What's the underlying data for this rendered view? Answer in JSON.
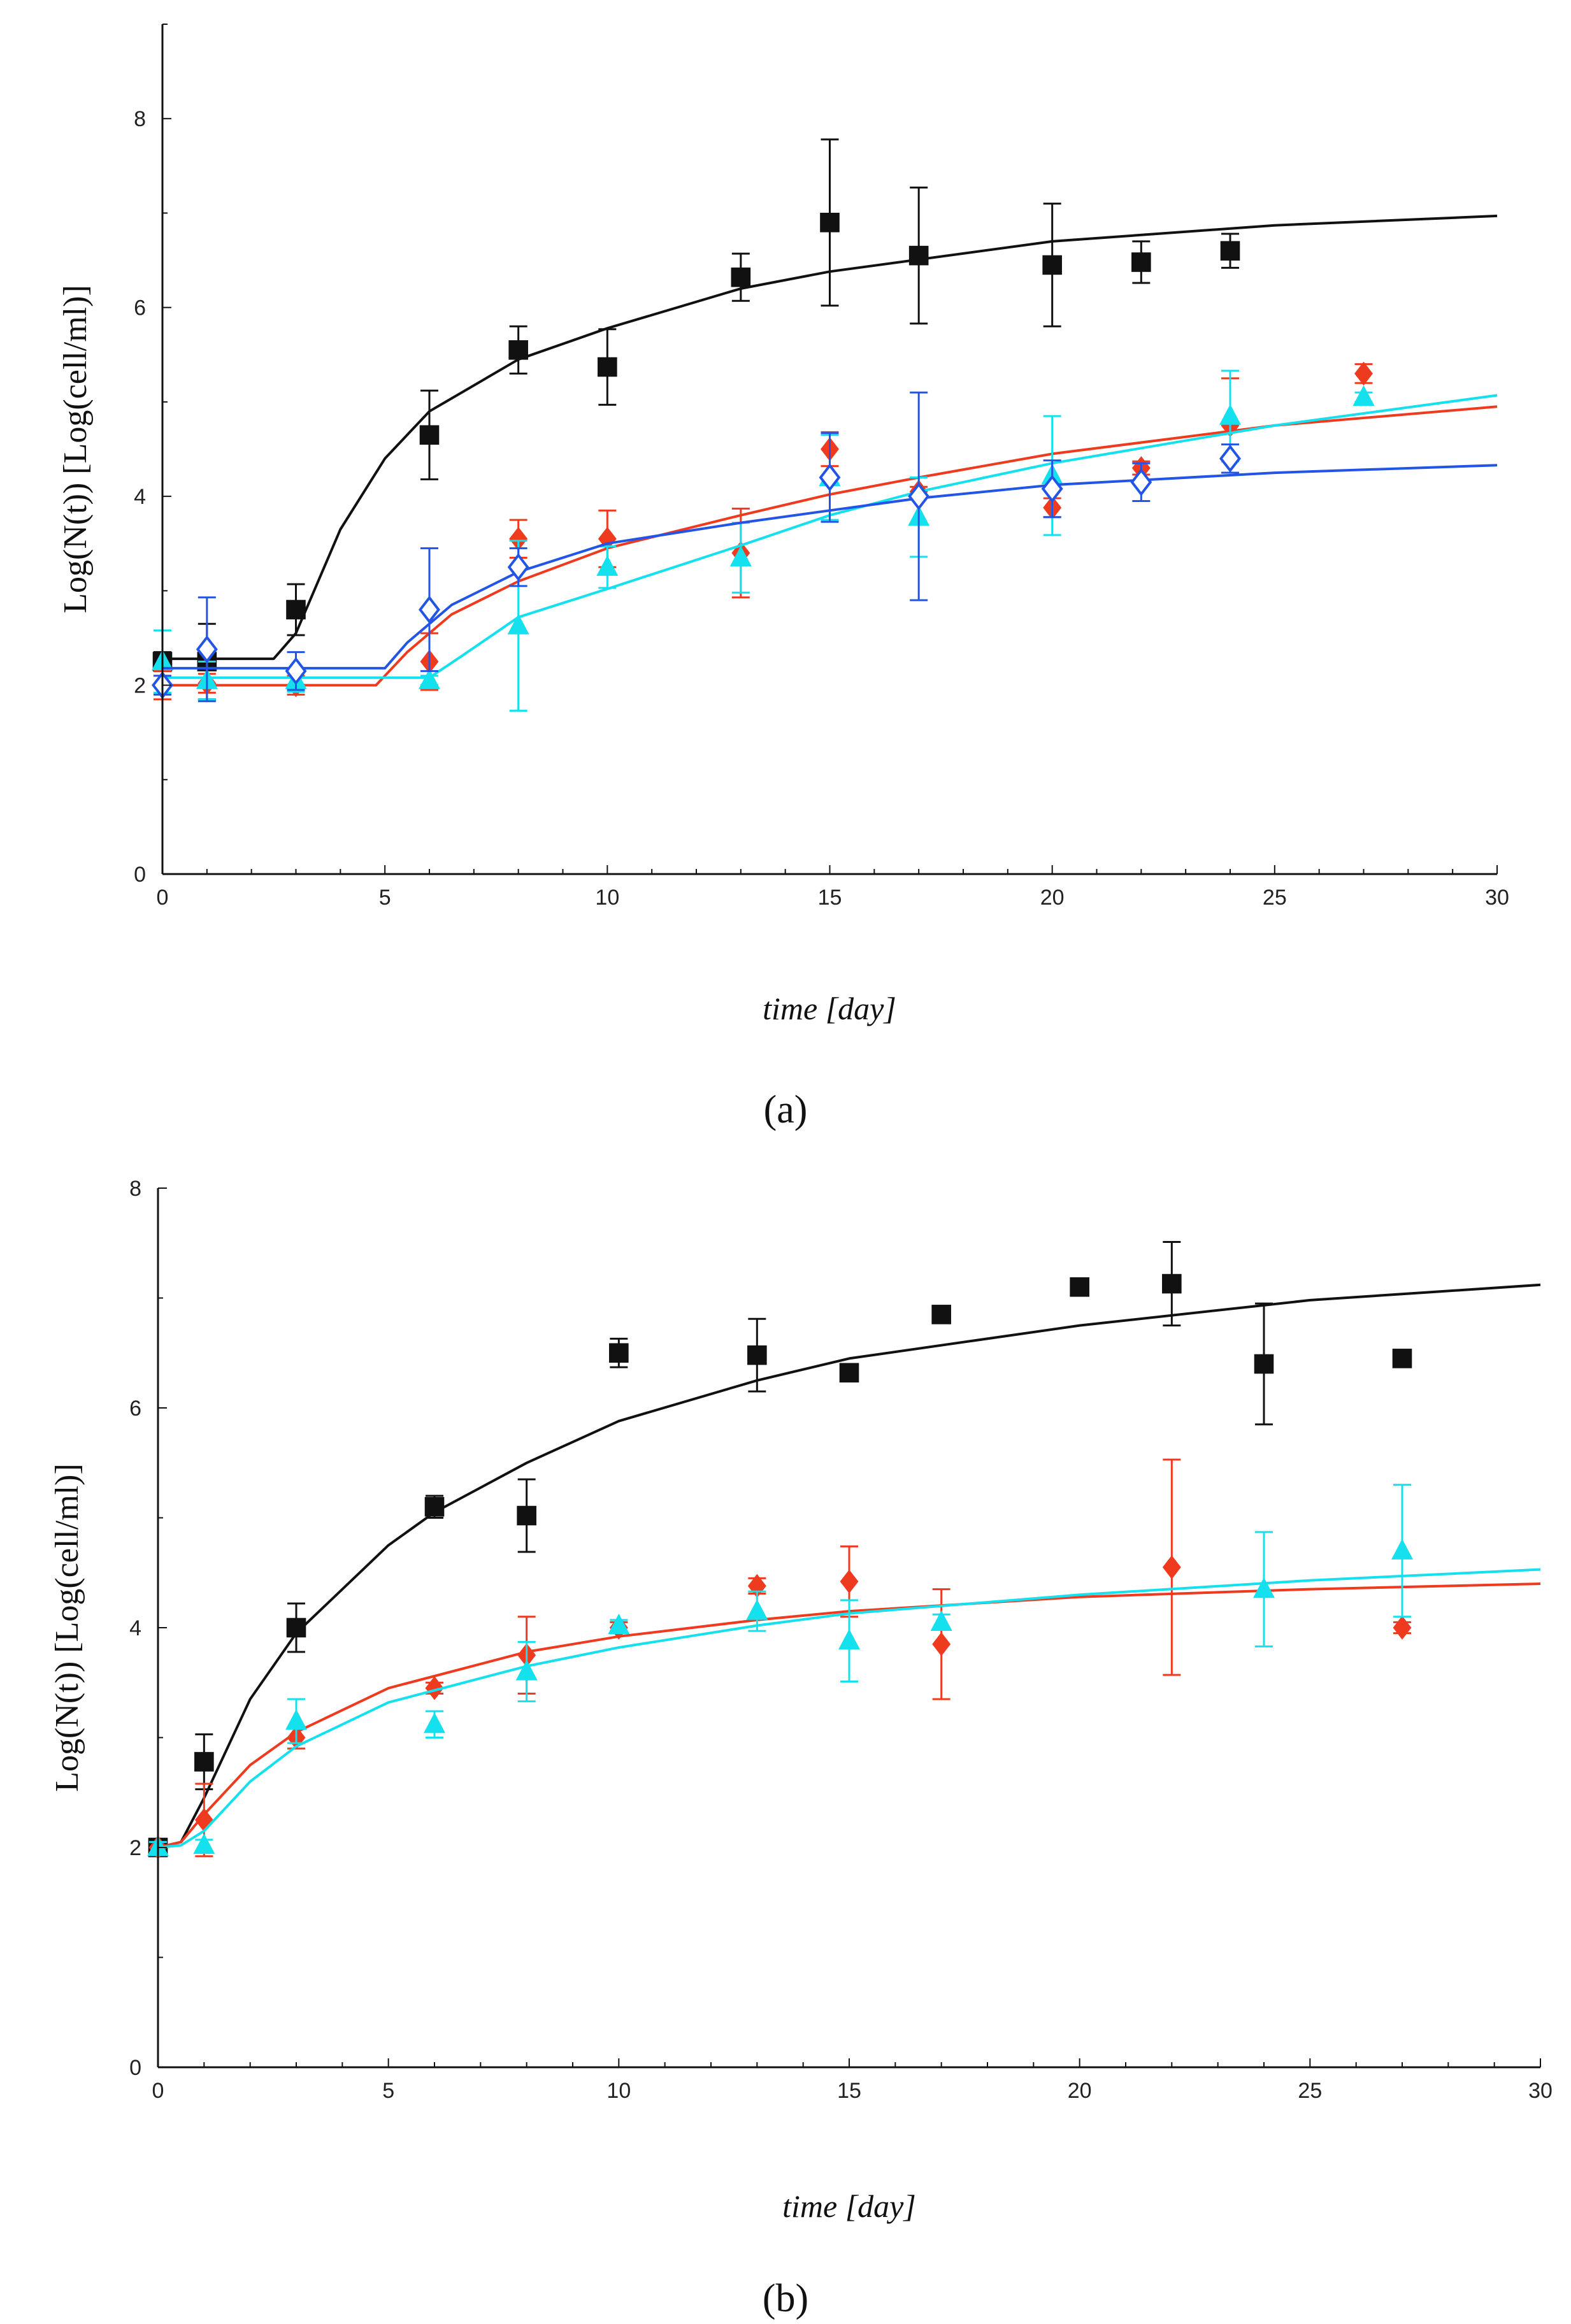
{
  "chart_data": [
    {
      "type": "scatter",
      "caption": "(a)",
      "xlabel": "time [day]",
      "ylabel": "Log(N(t)) [Log(cell/ml)]",
      "xlim": [
        0,
        30
      ],
      "ylim": [
        0,
        9
      ],
      "xticks": [
        "0",
        "5",
        "10",
        "15",
        "20",
        "25",
        "30"
      ],
      "yticks": [
        "0",
        "2",
        "4",
        "6",
        "8"
      ],
      "series": [
        {
          "name": "black",
          "color": "#111111",
          "marker": "square",
          "points": [
            {
              "x": 0,
              "y": 2.25,
              "err": 0.1
            },
            {
              "x": 1,
              "y": 2.25,
              "err": 0.4
            },
            {
              "x": 3,
              "y": 2.8,
              "err": 0.27
            },
            {
              "x": 6,
              "y": 4.65,
              "err": 0.47
            },
            {
              "x": 8,
              "y": 5.55,
              "err": 0.25
            },
            {
              "x": 10,
              "y": 5.37,
              "err": 0.4
            },
            {
              "x": 13,
              "y": 6.32,
              "err": 0.25
            },
            {
              "x": 15,
              "y": 6.9,
              "err": 0.88
            },
            {
              "x": 17,
              "y": 6.55,
              "err": 0.72
            },
            {
              "x": 20,
              "y": 6.45,
              "err": 0.65
            },
            {
              "x": 22,
              "y": 6.48,
              "err": 0.22
            },
            {
              "x": 24,
              "y": 6.6,
              "err": 0.18
            }
          ],
          "fit": [
            [
              0,
              2.28
            ],
            [
              2.5,
              2.28
            ],
            [
              3,
              2.55
            ],
            [
              3.5,
              3.1
            ],
            [
              4,
              3.65
            ],
            [
              5,
              4.4
            ],
            [
              6,
              4.9
            ],
            [
              8,
              5.45
            ],
            [
              10,
              5.78
            ],
            [
              13,
              6.2
            ],
            [
              15,
              6.38
            ],
            [
              20,
              6.7
            ],
            [
              25,
              6.87
            ],
            [
              30,
              6.97
            ]
          ]
        },
        {
          "name": "red",
          "color": "#ee3a1e",
          "marker": "diamond",
          "points": [
            {
              "x": 0,
              "y": 2.0,
              "err": 0.15
            },
            {
              "x": 1,
              "y": 2.02,
              "err": 0.1
            },
            {
              "x": 3,
              "y": 2.0,
              "err": 0.1
            },
            {
              "x": 6,
              "y": 2.25,
              "err": 0.3
            },
            {
              "x": 8,
              "y": 3.55,
              "err": 0.2
            },
            {
              "x": 10,
              "y": 3.55,
              "err": 0.3
            },
            {
              "x": 13,
              "y": 3.4,
              "err": 0.47
            },
            {
              "x": 15,
              "y": 4.5,
              "err": 0.18
            },
            {
              "x": 17,
              "y": 4.05,
              "err": 0.05
            },
            {
              "x": 20,
              "y": 3.88,
              "err": 0.1
            },
            {
              "x": 22,
              "y": 4.3,
              "err": 0.07
            },
            {
              "x": 24,
              "y": 4.75,
              "err": 0.5
            },
            {
              "x": 27,
              "y": 5.3,
              "err": 0.1
            }
          ],
          "fit": [
            [
              0,
              2.0
            ],
            [
              4.8,
              2.0
            ],
            [
              5.5,
              2.35
            ],
            [
              6.5,
              2.75
            ],
            [
              8,
              3.1
            ],
            [
              10,
              3.45
            ],
            [
              13,
              3.8
            ],
            [
              15,
              4.02
            ],
            [
              17,
              4.2
            ],
            [
              20,
              4.45
            ],
            [
              25,
              4.75
            ],
            [
              30,
              4.95
            ]
          ]
        },
        {
          "name": "cyan",
          "color": "#14e0ee",
          "marker": "triangle",
          "points": [
            {
              "x": 0,
              "y": 2.25,
              "err": 0.33
            },
            {
              "x": 1,
              "y": 2.05,
              "err": 0.2
            },
            {
              "x": 3,
              "y": 2.05,
              "err": 0.12
            },
            {
              "x": 6,
              "y": 2.05,
              "err": 0.05
            },
            {
              "x": 8,
              "y": 2.63,
              "err": 0.9
            },
            {
              "x": 10,
              "y": 3.25,
              "err": 0.22
            },
            {
              "x": 13,
              "y": 3.35,
              "err": 0.37
            },
            {
              "x": 15,
              "y": 4.2,
              "err": 0.45
            },
            {
              "x": 17,
              "y": 3.78,
              "err": 0.42
            },
            {
              "x": 20,
              "y": 4.22,
              "err": 0.63
            },
            {
              "x": 24,
              "y": 4.85,
              "err": 0.48
            },
            {
              "x": 27,
              "y": 5.05,
              "err": 0.05
            }
          ],
          "fit": [
            [
              0,
              2.08
            ],
            [
              6,
              2.08
            ],
            [
              6.7,
              2.3
            ],
            [
              8,
              2.72
            ],
            [
              10,
              3.02
            ],
            [
              13,
              3.48
            ],
            [
              15,
              3.8
            ],
            [
              17,
              4.05
            ],
            [
              20,
              4.35
            ],
            [
              25,
              4.75
            ],
            [
              30,
              5.07
            ]
          ]
        },
        {
          "name": "blue",
          "color": "#2255e6",
          "marker": "open-diamond",
          "points": [
            {
              "x": 0,
              "y": 2.0,
              "err": 0.1
            },
            {
              "x": 1,
              "y": 2.38,
              "err": 0.55
            },
            {
              "x": 3,
              "y": 2.15,
              "err": 0.2
            },
            {
              "x": 6,
              "y": 2.8,
              "err": 0.65
            },
            {
              "x": 8,
              "y": 3.25,
              "err": 0.2
            },
            {
              "x": 15,
              "y": 4.2,
              "err": 0.47
            },
            {
              "x": 17,
              "y": 4.0,
              "err": 1.1
            },
            {
              "x": 20,
              "y": 4.08,
              "err": 0.3
            },
            {
              "x": 22,
              "y": 4.15,
              "err": 0.2
            },
            {
              "x": 24,
              "y": 4.4,
              "err": 0.15
            }
          ],
          "fit": [
            [
              0,
              2.18
            ],
            [
              5,
              2.18
            ],
            [
              5.5,
              2.45
            ],
            [
              6.5,
              2.85
            ],
            [
              8,
              3.2
            ],
            [
              10,
              3.5
            ],
            [
              13,
              3.72
            ],
            [
              15,
              3.85
            ],
            [
              17,
              3.98
            ],
            [
              20,
              4.12
            ],
            [
              25,
              4.25
            ],
            [
              30,
              4.33
            ]
          ]
        }
      ]
    },
    {
      "type": "scatter",
      "caption": "(b)",
      "xlabel": "time [day]",
      "ylabel": "Log(N(t)) [Log(cell/ml)]",
      "xlim": [
        0,
        30
      ],
      "ylim": [
        0,
        8
      ],
      "xticks": [
        "0",
        "5",
        "10",
        "15",
        "20",
        "25",
        "30"
      ],
      "yticks": [
        "0",
        "2",
        "4",
        "6",
        "8"
      ],
      "series": [
        {
          "name": "black",
          "color": "#111111",
          "marker": "square",
          "points": [
            {
              "x": 0,
              "y": 2.0,
              "err": 0.05
            },
            {
              "x": 1,
              "y": 2.78,
              "err": 0.25
            },
            {
              "x": 3,
              "y": 4.0,
              "err": 0.22
            },
            {
              "x": 6,
              "y": 5.1,
              "err": 0.1
            },
            {
              "x": 8,
              "y": 5.02,
              "err": 0.33
            },
            {
              "x": 10,
              "y": 6.5,
              "err": 0.13
            },
            {
              "x": 13,
              "y": 6.48,
              "err": 0.33
            },
            {
              "x": 15,
              "y": 6.32,
              "err": 0.05
            },
            {
              "x": 17,
              "y": 6.85,
              "err": 0.05
            },
            {
              "x": 20,
              "y": 7.1,
              "err": 0.05
            },
            {
              "x": 22,
              "y": 7.13,
              "err": 0.38
            },
            {
              "x": 24,
              "y": 6.4,
              "err": 0.55
            },
            {
              "x": 27,
              "y": 6.45,
              "err": 0.05
            }
          ],
          "fit": [
            [
              0,
              2.0
            ],
            [
              0.5,
              2.05
            ],
            [
              1,
              2.45
            ],
            [
              2,
              3.35
            ],
            [
              3,
              3.95
            ],
            [
              5,
              4.75
            ],
            [
              6,
              5.05
            ],
            [
              8,
              5.5
            ],
            [
              10,
              5.88
            ],
            [
              13,
              6.25
            ],
            [
              15,
              6.45
            ],
            [
              20,
              6.75
            ],
            [
              25,
              6.98
            ],
            [
              30,
              7.12
            ]
          ]
        },
        {
          "name": "red",
          "color": "#ee3a1e",
          "marker": "diamond",
          "points": [
            {
              "x": 0,
              "y": 2.0,
              "err": 0.05
            },
            {
              "x": 1,
              "y": 2.25,
              "err": 0.33
            },
            {
              "x": 3,
              "y": 3.0,
              "err": 0.1
            },
            {
              "x": 6,
              "y": 3.45,
              "err": 0.05
            },
            {
              "x": 8,
              "y": 3.75,
              "err": 0.35
            },
            {
              "x": 10,
              "y": 4.0,
              "err": 0.05
            },
            {
              "x": 13,
              "y": 4.38,
              "err": 0.07
            },
            {
              "x": 15,
              "y": 4.42,
              "err": 0.32
            },
            {
              "x": 17,
              "y": 3.85,
              "err": 0.5
            },
            {
              "x": 22,
              "y": 4.55,
              "err": 0.98
            },
            {
              "x": 27,
              "y": 4.0,
              "err": 0.05
            }
          ],
          "fit": [
            [
              0,
              2.0
            ],
            [
              0.5,
              2.05
            ],
            [
              1,
              2.3
            ],
            [
              2,
              2.75
            ],
            [
              3,
              3.05
            ],
            [
              5,
              3.45
            ],
            [
              8,
              3.78
            ],
            [
              10,
              3.92
            ],
            [
              13,
              4.07
            ],
            [
              15,
              4.15
            ],
            [
              20,
              4.28
            ],
            [
              25,
              4.35
            ],
            [
              30,
              4.4
            ]
          ]
        },
        {
          "name": "cyan",
          "color": "#14e0ee",
          "marker": "triangle",
          "points": [
            {
              "x": 0,
              "y": 2.0,
              "err": 0.05
            },
            {
              "x": 1,
              "y": 2.02,
              "err": 0.05
            },
            {
              "x": 3,
              "y": 3.15,
              "err": 0.2
            },
            {
              "x": 6,
              "y": 3.12,
              "err": 0.12
            },
            {
              "x": 8,
              "y": 3.6,
              "err": 0.27
            },
            {
              "x": 10,
              "y": 4.02,
              "err": 0.05
            },
            {
              "x": 13,
              "y": 4.15,
              "err": 0.18
            },
            {
              "x": 15,
              "y": 3.88,
              "err": 0.37
            },
            {
              "x": 17,
              "y": 4.05,
              "err": 0.07
            },
            {
              "x": 24,
              "y": 4.35,
              "err": 0.52
            },
            {
              "x": 27,
              "y": 4.7,
              "err": 0.6
            }
          ],
          "fit": [
            [
              0,
              2.0
            ],
            [
              0.5,
              2.02
            ],
            [
              1,
              2.15
            ],
            [
              2,
              2.6
            ],
            [
              3,
              2.92
            ],
            [
              5,
              3.32
            ],
            [
              8,
              3.65
            ],
            [
              10,
              3.82
            ],
            [
              13,
              4.02
            ],
            [
              15,
              4.13
            ],
            [
              20,
              4.3
            ],
            [
              25,
              4.43
            ],
            [
              30,
              4.53
            ]
          ]
        }
      ]
    }
  ]
}
